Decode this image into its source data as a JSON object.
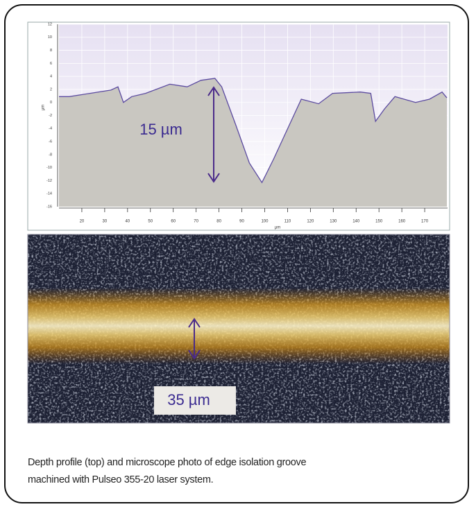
{
  "chart_data": {
    "type": "area",
    "xlabel": "µm",
    "ylabel": "µm",
    "x": [
      10,
      14.5,
      23.6,
      32.7,
      35.8,
      38.2,
      41.8,
      47.9,
      58.5,
      66.1,
      72.1,
      78.2,
      81.2,
      87.3,
      93.3,
      98.8,
      103.9,
      111.5,
      116,
      123.6,
      129.7,
      141.8,
      146.4,
      148.5,
      152.4,
      157,
      166,
      172.1,
      177.6,
      179.7
    ],
    "values": [
      0.9,
      0.9,
      1.4,
      1.9,
      2.4,
      0,
      0.9,
      1.4,
      2.8,
      2.4,
      3.4,
      3.7,
      2.4,
      -3.4,
      -9.3,
      -12.3,
      -8.7,
      -2.9,
      0.5,
      -0.2,
      1.4,
      1.6,
      1.4,
      -2.9,
      -1,
      0.9,
      0,
      0.5,
      1.6,
      0.7
    ],
    "color": "#5b4aa0",
    "fill": "#c9c7c1",
    "xlim": [
      10,
      180
    ],
    "ylim": [
      -16,
      12
    ],
    "xticks": [
      20,
      30,
      40,
      50,
      60,
      70,
      80,
      90,
      100,
      110,
      120,
      130,
      140,
      150,
      160,
      170
    ],
    "yticks": [
      -16,
      -14,
      -12,
      -10,
      -8,
      -6,
      -4,
      -2,
      0,
      2,
      4,
      6,
      8,
      10,
      12
    ],
    "grid": true,
    "annotation": "15 µm"
  },
  "photo": {
    "annotation": "35 µm"
  },
  "caption": [
    "Depth profile (top) and microscope photo of edge isolation groove",
    "machined with Pulseo 355-20 laser system."
  ]
}
